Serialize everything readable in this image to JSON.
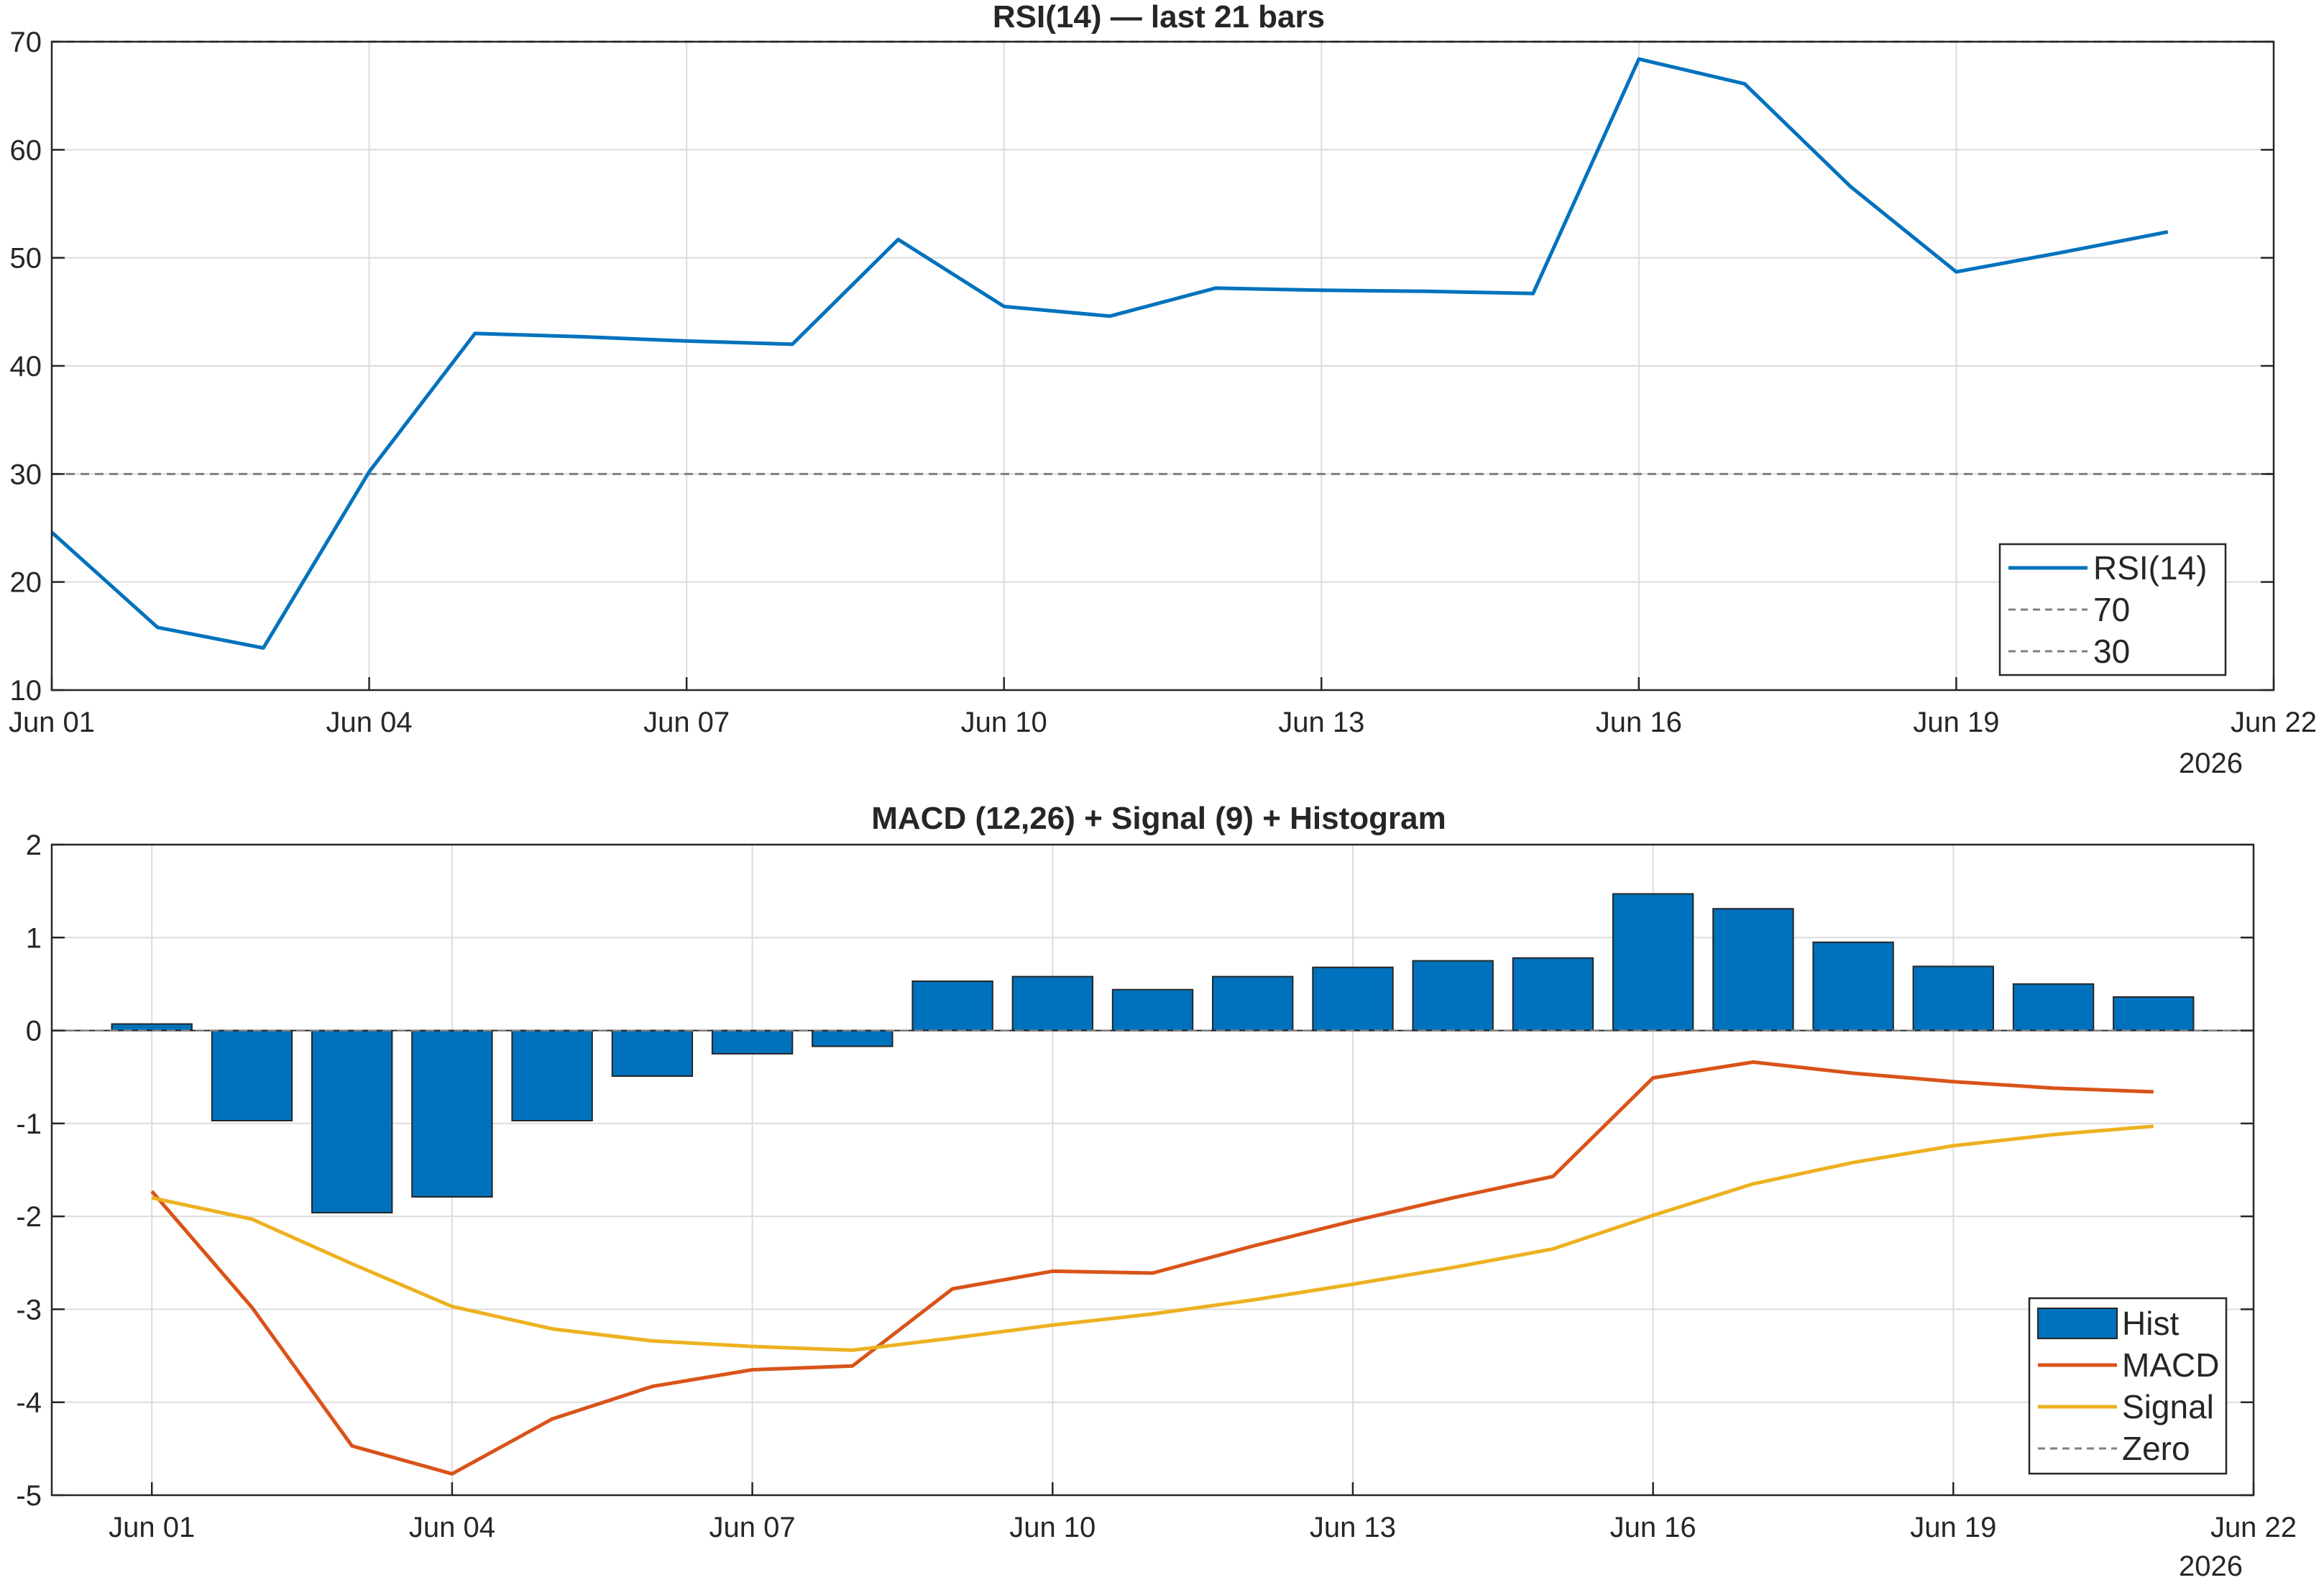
{
  "chart_data": [
    {
      "type": "line",
      "title": "RSI(14) — last 21 bars",
      "xlabel": "",
      "ylabel": "",
      "x_type": "date",
      "x_start": "2026-06-01",
      "xlim": [
        "2026-06-01",
        "2026-06-22"
      ],
      "ylim": [
        10,
        70
      ],
      "x_ticks": [
        "Jun 01",
        "Jun 04",
        "Jun 07",
        "Jun 10",
        "Jun 13",
        "Jun 16",
        "Jun 19",
        "Jun 22"
      ],
      "x_year": "2026",
      "y_ticks": [
        10,
        20,
        30,
        40,
        50,
        60,
        70
      ],
      "grid": true,
      "legend_position": "bottom-right",
      "colors": {
        "rsi": "#0072BD",
        "ref": "#808080"
      },
      "series": [
        {
          "name": "RSI(14)",
          "x": [
            "2026-06-01",
            "2026-06-02",
            "2026-06-03",
            "2026-06-04",
            "2026-06-05",
            "2026-06-06",
            "2026-06-07",
            "2026-06-08",
            "2026-06-09",
            "2026-06-10",
            "2026-06-11",
            "2026-06-12",
            "2026-06-13",
            "2026-06-14",
            "2026-06-15",
            "2026-06-16",
            "2026-06-17",
            "2026-06-18",
            "2026-06-19",
            "2026-06-20",
            "2026-06-21"
          ],
          "values": [
            24.6,
            15.8,
            13.9,
            30.2,
            43.0,
            42.7,
            42.3,
            42.0,
            51.7,
            45.5,
            44.6,
            47.2,
            47.0,
            46.9,
            46.7,
            68.4,
            66.1,
            56.6,
            48.7,
            50.5,
            52.4
          ]
        }
      ],
      "reference_lines": [
        {
          "name": "70",
          "y": 70
        },
        {
          "name": "30",
          "y": 30
        }
      ]
    },
    {
      "type": "bar",
      "title": "MACD (12,26) + Signal (9) + Histogram",
      "xlabel": "",
      "ylabel": "",
      "x_type": "date",
      "xlim": [
        "2026-05-31",
        "2026-06-22"
      ],
      "ylim": [
        -5,
        2
      ],
      "x_ticks": [
        "Jun 01",
        "Jun 04",
        "Jun 07",
        "Jun 10",
        "Jun 13",
        "Jun 16",
        "Jun 19",
        "Jun 22"
      ],
      "x_year": "2026",
      "y_ticks": [
        -5,
        -4,
        -3,
        -2,
        -1,
        0,
        1,
        2
      ],
      "grid": true,
      "legend_position": "bottom-right",
      "colors": {
        "hist": "#0072BD",
        "macd": "#D95319",
        "signal": "#EDB120",
        "zero": "#808080"
      },
      "x": [
        "2026-06-01",
        "2026-06-02",
        "2026-06-03",
        "2026-06-04",
        "2026-06-05",
        "2026-06-06",
        "2026-06-07",
        "2026-06-08",
        "2026-06-09",
        "2026-06-10",
        "2026-06-11",
        "2026-06-12",
        "2026-06-13",
        "2026-06-14",
        "2026-06-15",
        "2026-06-16",
        "2026-06-17",
        "2026-06-18",
        "2026-06-19",
        "2026-06-20",
        "2026-06-21"
      ],
      "series": [
        {
          "name": "Hist",
          "kind": "bar",
          "values": [
            0.07,
            -0.97,
            -1.96,
            -1.79,
            -0.97,
            -0.49,
            -0.25,
            -0.17,
            0.53,
            0.58,
            0.44,
            0.58,
            0.68,
            0.75,
            0.78,
            1.47,
            1.31,
            0.95,
            0.69,
            0.5,
            0.36
          ]
        },
        {
          "name": "MACD",
          "kind": "line",
          "values": [
            -1.73,
            -2.98,
            -4.47,
            -4.77,
            -4.18,
            -3.83,
            -3.65,
            -3.61,
            -2.78,
            -2.59,
            -2.61,
            -2.32,
            -2.05,
            -1.8,
            -1.57,
            -0.51,
            -0.34,
            -0.46,
            -0.55,
            -0.62,
            -0.66
          ]
        },
        {
          "name": "Signal",
          "kind": "line",
          "values": [
            -1.8,
            -2.03,
            -2.51,
            -2.97,
            -3.21,
            -3.34,
            -3.4,
            -3.44,
            -3.31,
            -3.17,
            -3.05,
            -2.9,
            -2.73,
            -2.55,
            -2.35,
            -1.99,
            -1.65,
            -1.42,
            -1.24,
            -1.12,
            -1.03
          ]
        },
        {
          "name": "Zero",
          "kind": "refline",
          "y": 0
        }
      ]
    }
  ]
}
